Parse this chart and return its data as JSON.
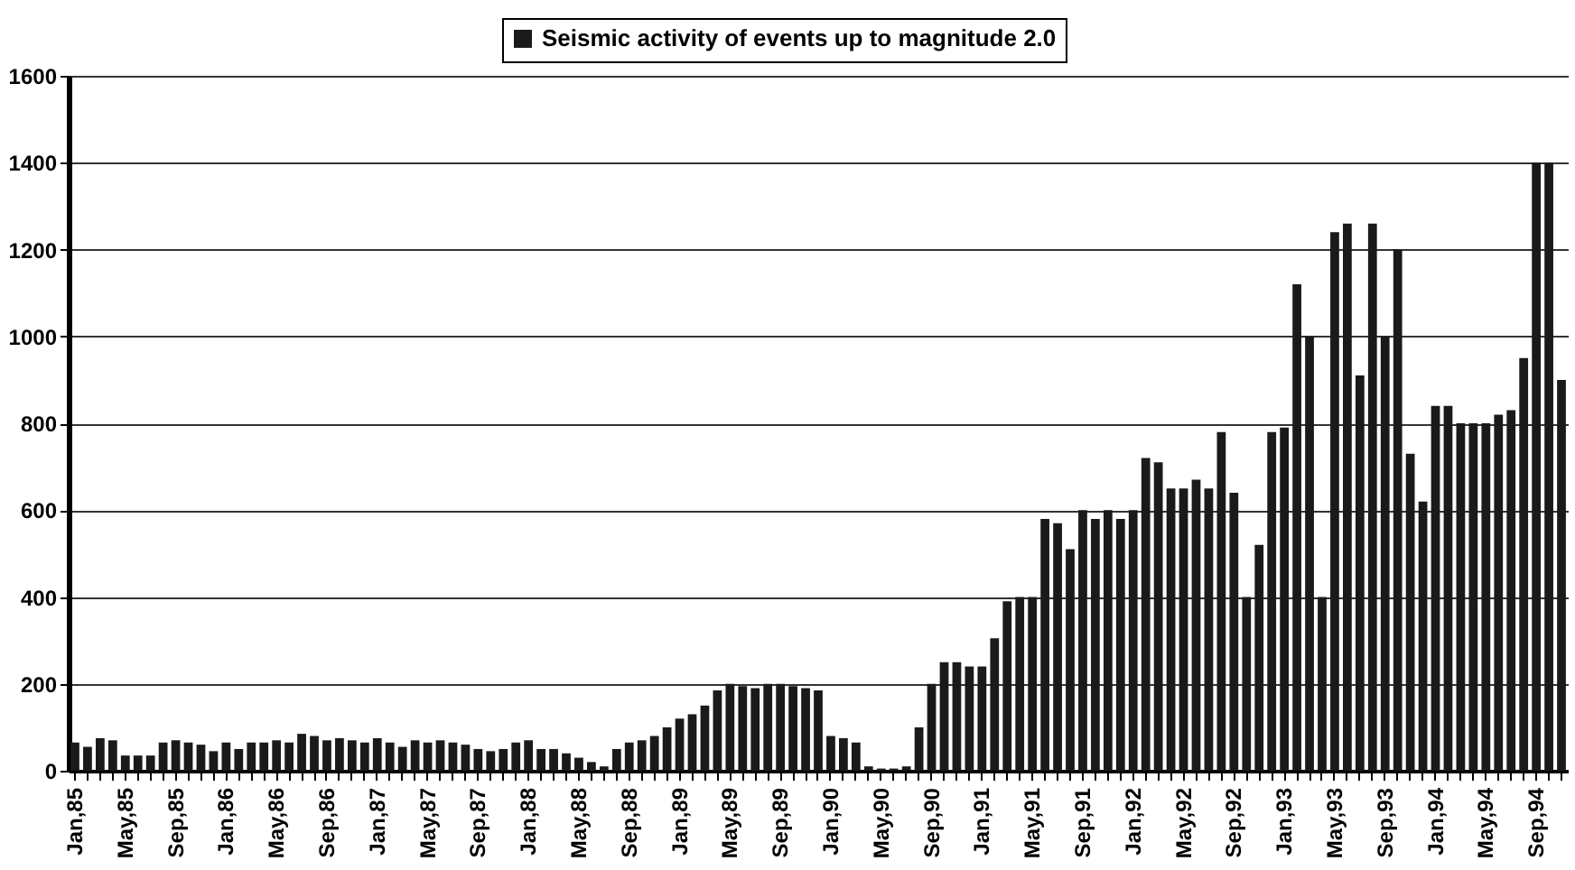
{
  "chart_data": {
    "type": "bar",
    "categories": [
      "Jan,85",
      null,
      null,
      null,
      "May,85",
      null,
      null,
      null,
      "Sep,85",
      null,
      null,
      null,
      "Jan,86",
      null,
      null,
      null,
      "May,86",
      null,
      null,
      null,
      "Sep,86",
      null,
      null,
      null,
      "Jan,87",
      null,
      null,
      null,
      "May,87",
      null,
      null,
      null,
      "Sep,87",
      null,
      null,
      null,
      "Jan,88",
      null,
      null,
      null,
      "May,88",
      null,
      null,
      null,
      "Sep,88",
      null,
      null,
      null,
      "Jan,89",
      null,
      null,
      null,
      "May,89",
      null,
      null,
      null,
      "Sep,89",
      null,
      null,
      null,
      "Jan,90",
      null,
      null,
      null,
      "May,90",
      null,
      null,
      null,
      "Sep,90",
      null,
      null,
      null,
      "Jan,91",
      null,
      null,
      null,
      "May,91",
      null,
      null,
      null,
      "Sep,91",
      null,
      null,
      null,
      "Jan,92",
      null,
      null,
      null,
      "May,92",
      null,
      null,
      null,
      "Sep,92",
      null,
      null,
      null,
      "Jan,93",
      null,
      null,
      null,
      "May,93",
      null,
      null,
      null,
      "Sep,93",
      null,
      null,
      null,
      "Jan,94",
      null,
      null,
      null,
      "May,94",
      null,
      null,
      null,
      "Sep,94",
      null,
      null
    ],
    "series": [
      {
        "name": "Seismic activity of events up to magnitude 2.0",
        "color": "#1a1a1a",
        "values": [
          65,
          55,
          75,
          70,
          35,
          35,
          35,
          65,
          70,
          65,
          60,
          45,
          65,
          50,
          65,
          65,
          70,
          65,
          85,
          80,
          70,
          75,
          70,
          65,
          75,
          65,
          55,
          70,
          65,
          70,
          65,
          60,
          50,
          45,
          50,
          65,
          70,
          50,
          50,
          40,
          30,
          20,
          10,
          50,
          65,
          70,
          80,
          100,
          120,
          130,
          150,
          185,
          200,
          195,
          190,
          200,
          200,
          195,
          190,
          185,
          80,
          75,
          65,
          10,
          5,
          5,
          10,
          100,
          200,
          250,
          250,
          240,
          240,
          305,
          390,
          400,
          400,
          580,
          570,
          510,
          600,
          580,
          600,
          580,
          600,
          720,
          710,
          650,
          650,
          670,
          650,
          780,
          640,
          400,
          520,
          780,
          790,
          1120,
          1000,
          400,
          1240,
          1260,
          910,
          1260,
          1000,
          1200,
          730,
          620,
          840,
          840,
          800,
          800,
          800,
          820,
          830,
          950,
          1400,
          1400,
          900
        ]
      }
    ],
    "ylim": [
      0,
      1600
    ],
    "yticks": [
      0,
      200,
      400,
      600,
      800,
      1000,
      1200,
      1400,
      1600
    ],
    "grid": "y",
    "legend": "top"
  }
}
